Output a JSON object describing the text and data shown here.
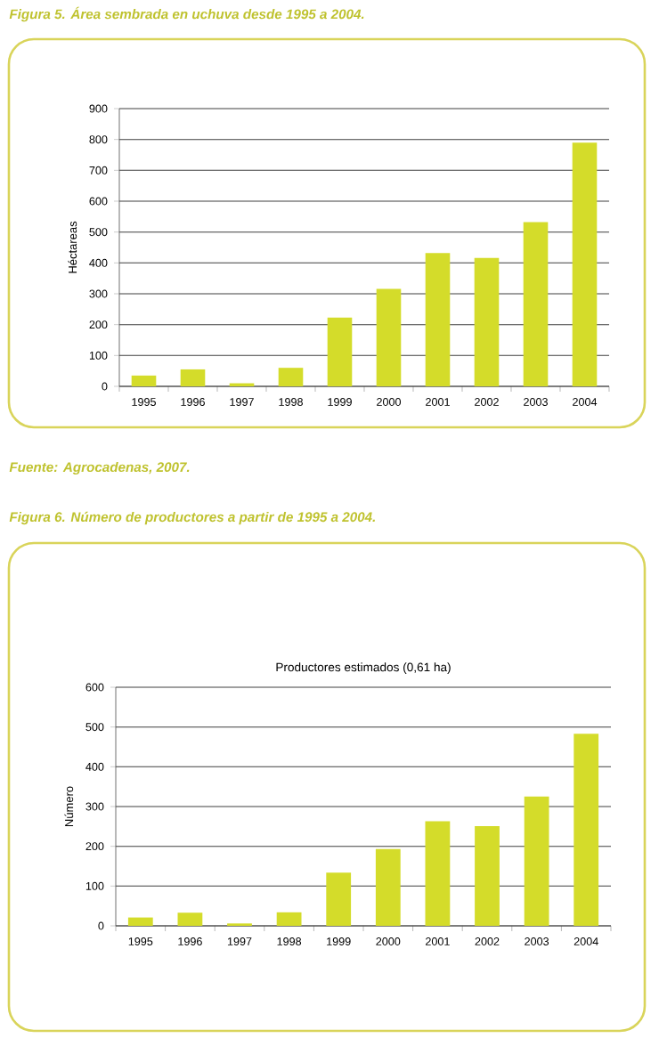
{
  "chart_data": [
    {
      "type": "bar",
      "title": "Figura 5. Área sembrada en uchuva  desde 1995 a 2004.",
      "ylabel": "Héctareas",
      "categories": [
        "1995",
        "1996",
        "1997",
        "1998",
        "1999",
        "2000",
        "2001",
        "2002",
        "2003",
        "2004"
      ],
      "values": [
        35,
        55,
        10,
        60,
        223,
        316,
        432,
        416,
        532,
        790
      ],
      "color": "#d4dc2a",
      "ylim": [
        0,
        900
      ],
      "yticks": [
        0,
        100,
        200,
        300,
        400,
        500,
        600,
        700,
        800,
        900
      ],
      "grid": "y",
      "annotations": [
        "Fuente: Agrocadenas, 2007."
      ]
    },
    {
      "type": "bar",
      "title": "Figura 6. Número de productores a partir de 1995 a 2004.",
      "subtitle": "Productores estimados (0,61 ha)",
      "ylabel": "Número",
      "categories": [
        "1995",
        "1996",
        "1997",
        "1998",
        "1999",
        "2000",
        "2001",
        "2002",
        "2003",
        "2004"
      ],
      "values": [
        21,
        33,
        6,
        34,
        134,
        193,
        263,
        251,
        325,
        483
      ],
      "color": "#d4dc2a",
      "ylim": [
        0,
        600
      ],
      "yticks": [
        0,
        100,
        200,
        300,
        400,
        500,
        600
      ],
      "grid": "y"
    }
  ]
}
